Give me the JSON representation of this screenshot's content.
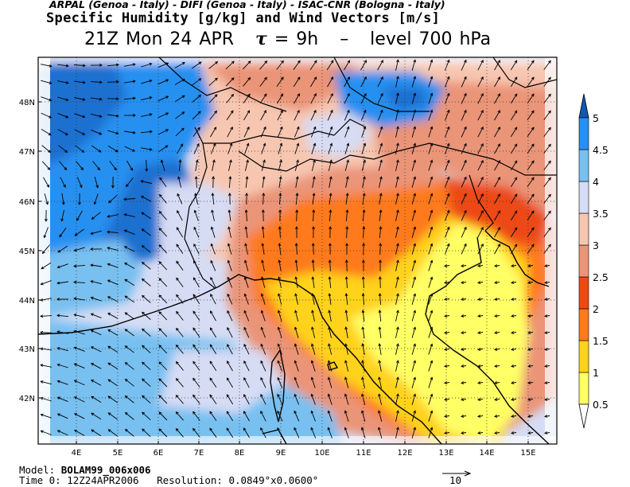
{
  "header": {
    "credits": "ARPAL (Genoa - Italy)  -  DIFI (Genoa - Italy)  -  ISAC-CNR (Bologna - Italy)",
    "title": "Specific Humidity [g/kg] and Wind Vectors [m/s]",
    "time_label": "21Z Mon 24 APR",
    "tau_symbol": "τ",
    "tau_value": "= 9h",
    "separator": "–",
    "level_label": "level 700 hPa"
  },
  "footer": {
    "model_label": "Model:",
    "model_value": "BOLAM99_006x006",
    "time0_label": "Time 0:",
    "time0_value": "12Z24APR2006",
    "resolution_label": "Resolution:",
    "resolution_value": "0.0849°x0.0600°",
    "reference_vector_value": "10"
  },
  "map": {
    "lat_labels": [
      "48N",
      "47N",
      "46N",
      "45N",
      "44N",
      "43N",
      "42N"
    ],
    "lon_labels": [
      "4E",
      "5E",
      "6E",
      "7E",
      "8E",
      "9E",
      "10E",
      "11E",
      "12E",
      "13E",
      "14E",
      "15E"
    ]
  },
  "colorbar": {
    "levels": [
      "0.5",
      "1",
      "1.5",
      "2",
      "2.5",
      "3",
      "3.5",
      "4",
      "4.5",
      "5"
    ],
    "colors": [
      "#ffff66",
      "#ffd21e",
      "#ff7a1e",
      "#ec4a14",
      "#ea9478",
      "#f7c6b0",
      "#d6dcf4",
      "#78c0f0",
      "#2890f0",
      "#1e70d0",
      "#1060c0"
    ],
    "under_color": "#ffffff",
    "over_color": "#1058b4"
  },
  "icons": {
    "reference_arrow": "right-arrow-icon",
    "colorbar_top": "triangle-up-icon",
    "colorbar_bottom": "triangle-down-icon"
  }
}
